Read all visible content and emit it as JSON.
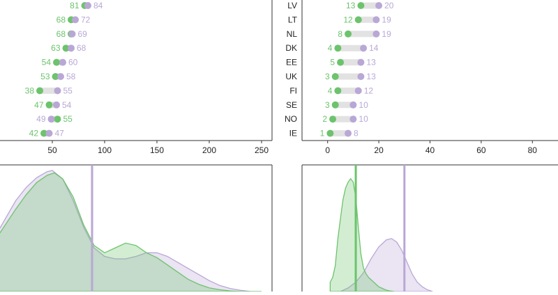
{
  "colors": {
    "green": "#6cc36c",
    "purple": "#b9a7d6",
    "bar": "#e2e2e2",
    "axis": "#333333",
    "green_fill": "#cfe8cf",
    "purple_fill": "#ddd4ea"
  },
  "chart_data": [
    {
      "id": "top-left",
      "type": "dumbbell",
      "xlim": [
        0,
        260
      ],
      "xticks": [
        50,
        100,
        150,
        200,
        250
      ],
      "rows": [
        {
          "green": 81,
          "purple": 84
        },
        {
          "green": 68,
          "purple": 72
        },
        {
          "green": 68,
          "purple": 69
        },
        {
          "green": 63,
          "purple": 68
        },
        {
          "green": 54,
          "purple": 60
        },
        {
          "green": 53,
          "purple": 58
        },
        {
          "green": 38,
          "purple": 55
        },
        {
          "green": 47,
          "purple": 54
        },
        {
          "green": 55,
          "purple": 49
        },
        {
          "green": 42,
          "purple": 47
        }
      ]
    },
    {
      "id": "top-right",
      "type": "dumbbell",
      "xlim": [
        -10,
        90
      ],
      "xticks": [
        0,
        20,
        40,
        60,
        80
      ],
      "rows": [
        {
          "country": "LV",
          "green": 13,
          "purple": 20
        },
        {
          "country": "LT",
          "green": 12,
          "purple": 19
        },
        {
          "country": "NL",
          "green": 8,
          "purple": 19
        },
        {
          "country": "DK",
          "green": 4,
          "purple": 14
        },
        {
          "country": "EE",
          "green": 5,
          "purple": 13
        },
        {
          "country": "UK",
          "green": 3,
          "purple": 13
        },
        {
          "country": "FI",
          "green": 4,
          "purple": 12
        },
        {
          "country": "SE",
          "green": 3,
          "purple": 10
        },
        {
          "country": "NO",
          "green": 2,
          "purple": 10
        },
        {
          "country": "IE",
          "green": 1,
          "purple": 8
        }
      ]
    },
    {
      "id": "bottom-left",
      "type": "area",
      "xlim": [
        0,
        260
      ],
      "ylim": [
        0,
        1
      ],
      "vline": 88,
      "series": [
        {
          "color": "green",
          "x": [
            -5,
            5,
            15,
            25,
            35,
            45,
            52,
            60,
            70,
            80,
            90,
            100,
            110,
            120,
            130,
            140,
            150,
            160,
            170,
            180,
            190,
            200,
            210,
            220,
            230,
            240,
            250
          ],
          "y": [
            0.42,
            0.55,
            0.68,
            0.8,
            0.9,
            0.96,
            0.98,
            0.93,
            0.78,
            0.55,
            0.38,
            0.32,
            0.36,
            0.4,
            0.38,
            0.32,
            0.28,
            0.22,
            0.16,
            0.1,
            0.06,
            0.03,
            0.015,
            0.005,
            0,
            0,
            0
          ]
        },
        {
          "color": "purple",
          "x": [
            -5,
            5,
            15,
            25,
            35,
            45,
            50,
            60,
            70,
            80,
            90,
            100,
            110,
            120,
            130,
            140,
            150,
            160,
            170,
            180,
            190,
            200,
            210,
            220,
            230,
            240,
            250
          ],
          "y": [
            0.45,
            0.6,
            0.75,
            0.86,
            0.94,
            0.99,
            1.0,
            0.93,
            0.75,
            0.53,
            0.36,
            0.29,
            0.27,
            0.27,
            0.29,
            0.32,
            0.32,
            0.29,
            0.24,
            0.19,
            0.14,
            0.09,
            0.05,
            0.025,
            0.01,
            0,
            0
          ]
        }
      ]
    },
    {
      "id": "bottom-right",
      "type": "area",
      "xlim": [
        -10,
        90
      ],
      "ylim": [
        0,
        1
      ],
      "vline_green": 11,
      "vline_purple": 30,
      "series": [
        {
          "color": "green",
          "x": [
            1,
            2,
            3,
            4,
            5,
            6,
            7,
            8,
            9,
            10,
            11,
            12,
            13,
            14,
            15,
            16,
            17,
            18,
            19,
            20,
            21,
            22,
            23,
            24,
            25,
            26
          ],
          "y": [
            0.08,
            0.12,
            0.22,
            0.45,
            0.62,
            0.78,
            0.88,
            0.93,
            0.96,
            0.93,
            0.8,
            0.55,
            0.32,
            0.2,
            0.15,
            0.12,
            0.1,
            0.08,
            0.06,
            0.04,
            0.03,
            0.02,
            0.012,
            0.006,
            0.003,
            0
          ]
        },
        {
          "color": "purple",
          "x": [
            5,
            8,
            11,
            14,
            17,
            20,
            23,
            25,
            27,
            29,
            31,
            33,
            35,
            37,
            39,
            41
          ],
          "y": [
            0,
            0.03,
            0.08,
            0.16,
            0.28,
            0.38,
            0.44,
            0.45,
            0.42,
            0.35,
            0.25,
            0.15,
            0.08,
            0.04,
            0.015,
            0
          ]
        }
      ]
    }
  ]
}
